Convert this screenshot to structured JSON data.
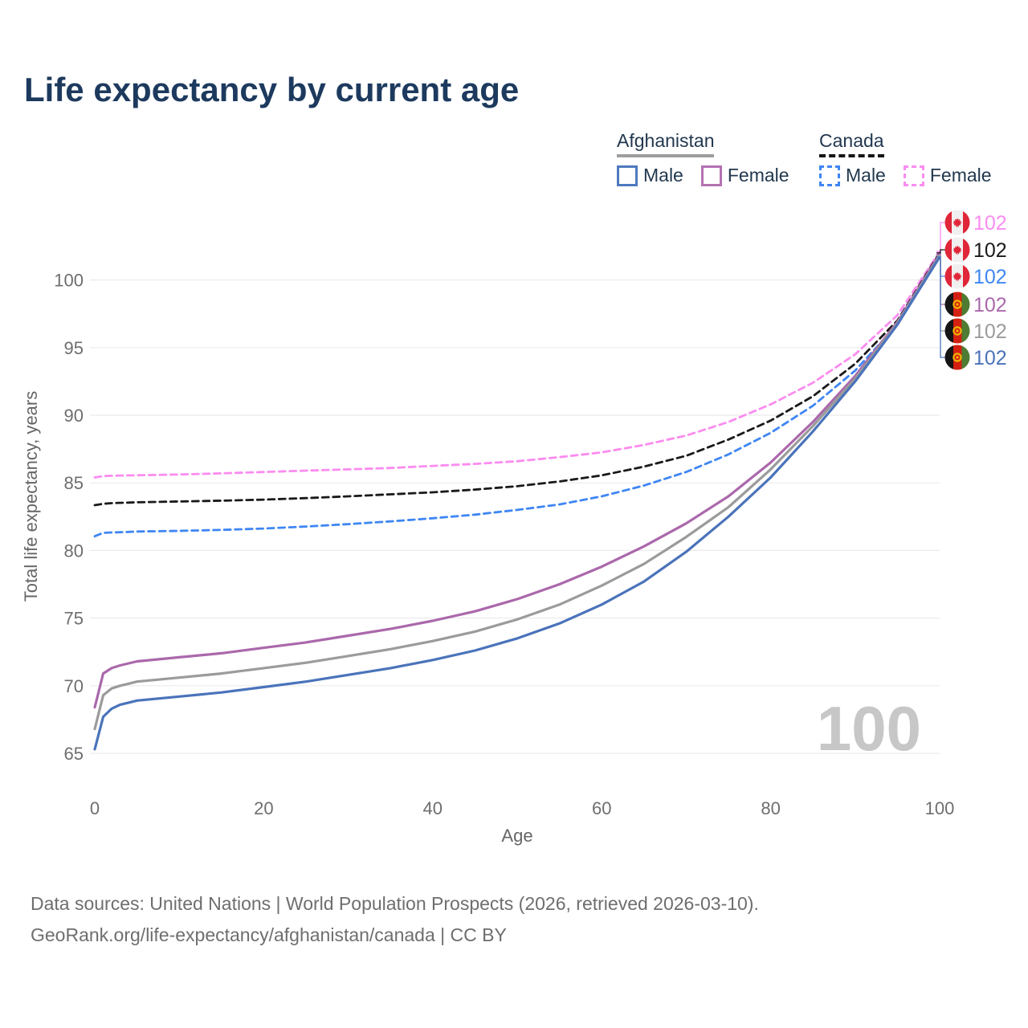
{
  "title": "Life expectancy by current age",
  "legend": {
    "afghanistan": {
      "country": "Afghanistan",
      "male_label": "Male",
      "female_label": "Female",
      "underline_color": "#9e9e9e",
      "underline_style": "solid",
      "male_color": "#4a73ba",
      "female_color": "#b472b2"
    },
    "canada": {
      "country": "Canada",
      "male_label": "Male",
      "female_label": "Female",
      "underline_color": "#161616",
      "underline_style": "dashed",
      "male_color": "#3f86f4",
      "female_color": "#fb8cf0"
    }
  },
  "watermark": "100",
  "chart_data": {
    "type": "line",
    "title": "Life expectancy by current age",
    "xlabel": "Age",
    "ylabel": "Total life expectancy, years",
    "x_ticks": [
      0,
      20,
      40,
      60,
      80,
      100
    ],
    "y_ticks": [
      65,
      70,
      75,
      80,
      85,
      90,
      95,
      100
    ],
    "xlim": [
      0,
      100
    ],
    "ylim": [
      65,
      103
    ],
    "grid": "horizontal-only",
    "legend_position": "top-right",
    "x": [
      0,
      1,
      2,
      3,
      4,
      5,
      10,
      15,
      20,
      25,
      30,
      35,
      40,
      45,
      50,
      55,
      60,
      65,
      70,
      75,
      80,
      85,
      90,
      95,
      100
    ],
    "series": [
      {
        "id": "canada-female",
        "name": "Canada Female",
        "country": "Canada",
        "sex": "Female",
        "color": "#fb8cf0",
        "dashed": true,
        "flag": "canada",
        "end_label": "102",
        "y": [
          85.4,
          85.5,
          85.52,
          85.54,
          85.55,
          85.56,
          85.62,
          85.7,
          85.8,
          85.9,
          86.0,
          86.1,
          86.25,
          86.4,
          86.6,
          86.9,
          87.25,
          87.8,
          88.5,
          89.5,
          90.8,
          92.4,
          94.5,
          97.4,
          102.1
        ]
      },
      {
        "id": "canada-total",
        "name": "Canada",
        "country": "Canada",
        "sex": "Both",
        "color": "#1a1a1a",
        "dashed": true,
        "flag": "canada",
        "end_label": "102",
        "y": [
          83.35,
          83.45,
          83.5,
          83.52,
          83.54,
          83.56,
          83.62,
          83.68,
          83.76,
          83.87,
          84.0,
          84.15,
          84.3,
          84.5,
          84.75,
          85.1,
          85.55,
          86.2,
          87.0,
          88.2,
          89.6,
          91.4,
          93.8,
          97.0,
          102.0
        ]
      },
      {
        "id": "canada-male",
        "name": "Canada Male",
        "country": "Canada",
        "sex": "Male",
        "color": "#3f86f4",
        "dashed": true,
        "flag": "canada",
        "end_label": "102",
        "y": [
          81.05,
          81.3,
          81.33,
          81.35,
          81.37,
          81.4,
          81.45,
          81.52,
          81.62,
          81.77,
          81.95,
          82.15,
          82.38,
          82.65,
          83.0,
          83.4,
          84.0,
          84.8,
          85.8,
          87.1,
          88.7,
          90.7,
          93.3,
          96.7,
          101.9
        ]
      },
      {
        "id": "afghanistan-female",
        "name": "Afghanistan Female",
        "country": "Afghanistan",
        "sex": "Female",
        "color": "#ab68ab",
        "dashed": false,
        "flag": "afghanistan",
        "end_label": "102",
        "y": [
          68.4,
          70.9,
          71.3,
          71.5,
          71.65,
          71.8,
          72.1,
          72.4,
          72.8,
          73.2,
          73.7,
          74.2,
          74.8,
          75.5,
          76.4,
          77.5,
          78.8,
          80.3,
          82.0,
          84.0,
          86.5,
          89.5,
          92.9,
          96.9,
          101.9
        ]
      },
      {
        "id": "afghanistan-total",
        "name": "Afghanistan",
        "country": "Afghanistan",
        "sex": "Both",
        "color": "#9b9b9b",
        "dashed": false,
        "flag": "afghanistan",
        "end_label": "102",
        "y": [
          66.8,
          69.3,
          69.8,
          70.0,
          70.15,
          70.3,
          70.6,
          70.9,
          71.3,
          71.7,
          72.2,
          72.7,
          73.3,
          74.0,
          74.9,
          76.0,
          77.4,
          79.0,
          81.0,
          83.2,
          86.0,
          89.2,
          92.7,
          96.8,
          101.8
        ]
      },
      {
        "id": "afghanistan-male",
        "name": "Afghanistan Male",
        "country": "Afghanistan",
        "sex": "Male",
        "color": "#4a73ba",
        "dashed": false,
        "flag": "afghanistan",
        "end_label": "102",
        "y": [
          65.3,
          67.7,
          68.3,
          68.6,
          68.75,
          68.9,
          69.2,
          69.5,
          69.9,
          70.3,
          70.8,
          71.3,
          71.9,
          72.6,
          73.5,
          74.6,
          76.0,
          77.7,
          79.9,
          82.5,
          85.4,
          88.8,
          92.5,
          96.7,
          101.7
        ]
      }
    ]
  },
  "footer": {
    "line1": "Data sources: United Nations | World Population Prospects (2026, retrieved 2026-03-10).",
    "line2": "GeoRank.org/life-expectancy/afghanistan/canada | CC BY"
  }
}
